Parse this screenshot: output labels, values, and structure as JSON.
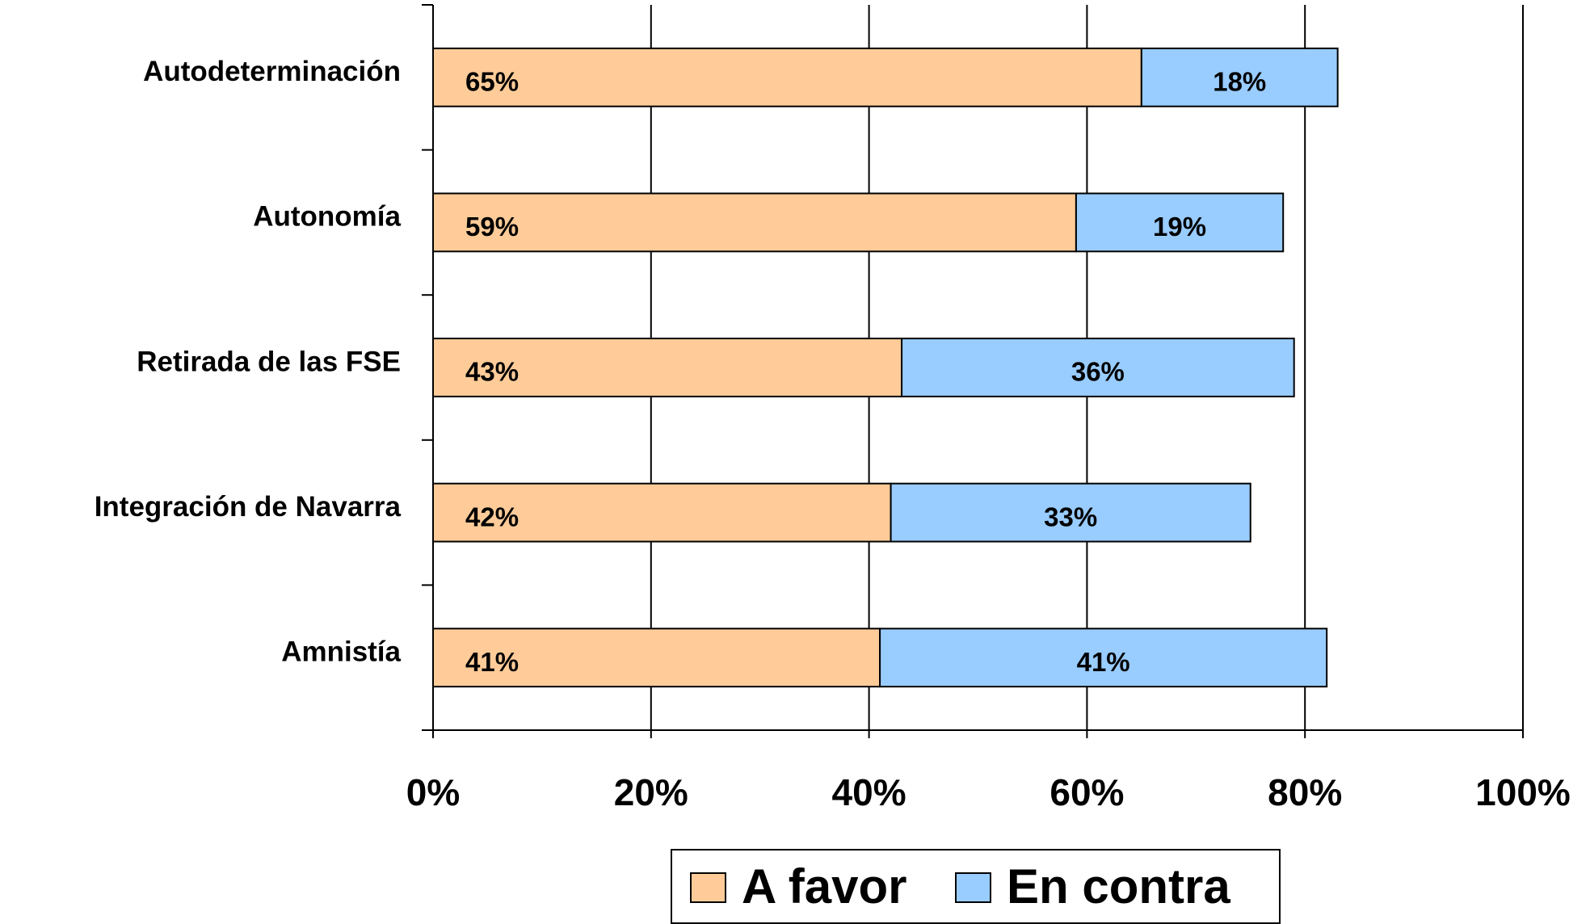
{
  "chart_data": {
    "type": "stacked-bar-horizontal",
    "categories": [
      "Autodeterminación",
      "Autonomía",
      "Retirada de las FSE",
      "Integración de Navarra",
      "Amnistía"
    ],
    "series": [
      {
        "name": "A favor",
        "color": "#ffcc99",
        "values": [
          65,
          59,
          43,
          42,
          41
        ],
        "value_labels": [
          "65%",
          "59%",
          "43%",
          "42%",
          "41%"
        ]
      },
      {
        "name": "En contra",
        "color": "#99ccff",
        "values": [
          18,
          19,
          36,
          33,
          41
        ],
        "value_labels": [
          "18%",
          "19%",
          "36%",
          "33%",
          "41%"
        ]
      }
    ],
    "xlim": [
      0,
      100
    ],
    "xticks": [
      {
        "value": 0,
        "label": "0%"
      },
      {
        "value": 20,
        "label": "20%"
      },
      {
        "value": 40,
        "label": "40%"
      },
      {
        "value": 60,
        "label": "60%"
      },
      {
        "value": 80,
        "label": "80%"
      },
      {
        "value": 100,
        "label": "100%"
      }
    ],
    "grid": true,
    "legend": "bottom"
  }
}
